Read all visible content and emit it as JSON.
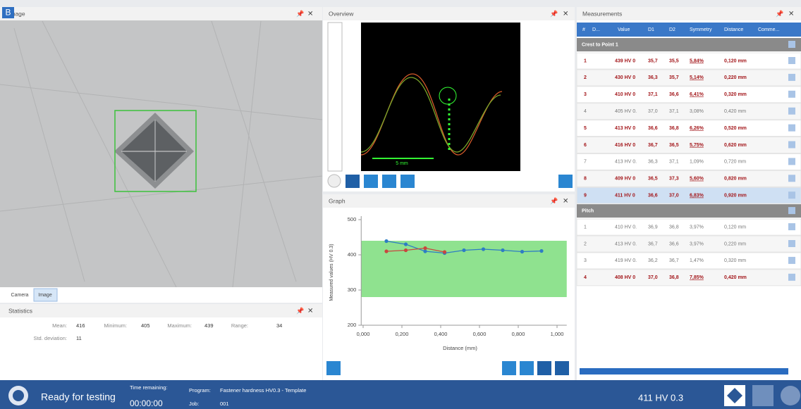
{
  "badge": "B",
  "image_panel": {
    "title": "Image",
    "tabs": [
      "Camera",
      "Image"
    ]
  },
  "statistics": {
    "title": "Statistics",
    "items": [
      {
        "label": "Mean:",
        "value": 416
      },
      {
        "label": "Minimum:",
        "value": 405
      },
      {
        "label": "Maximum:",
        "value": 439
      },
      {
        "label": "Range:",
        "value": 34
      },
      {
        "label": "Std. deviation:",
        "value": 11
      }
    ]
  },
  "overview": {
    "title": "Overview",
    "scale_label": "5 mm"
  },
  "graph_panel": {
    "title": "Graph"
  },
  "chart_data": {
    "type": "line",
    "xlabel": "Distance (mm)",
    "ylabel": "Measured values (HV 0.3)",
    "x": [
      0.12,
      0.22,
      0.32,
      0.42,
      0.52,
      0.62,
      0.72,
      0.82,
      0.92
    ],
    "series": [
      {
        "name": "Crest to Point 1",
        "color": "#2e7dc4",
        "values": [
          439,
          430,
          410,
          405,
          413,
          416,
          413,
          409,
          411
        ]
      },
      {
        "name": "Pitch",
        "color": "#c9473f",
        "values": [
          410,
          413,
          419,
          408,
          null,
          null,
          null,
          null,
          null
        ]
      }
    ],
    "band": [
      280,
      440
    ],
    "band_color": "#8fe28f",
    "xlim": [
      -0.01,
      1.05
    ],
    "ylim": [
      200,
      500
    ],
    "xticks": [
      {
        "value": 0,
        "label": "0,000"
      },
      {
        "value": 0.2,
        "label": "0,200"
      },
      {
        "value": 0.4,
        "label": "0,400"
      },
      {
        "value": 0.6,
        "label": "0,600"
      },
      {
        "value": 0.8,
        "label": "0,800"
      },
      {
        "value": 1,
        "label": "1,000"
      }
    ],
    "yticks": [
      200,
      300,
      400,
      500
    ]
  },
  "measurements": {
    "title": "Measurements",
    "columns": [
      "#",
      "D...",
      "Value",
      "D1",
      "D2",
      "Symmetry",
      "Distance",
      "Comme..."
    ],
    "groups": [
      {
        "name": "Crest to Point 1",
        "rows": [
          {
            "cells": [
              "1",
              "439 HV 0",
              "35,7",
              "35,5",
              "5,84%",
              "0,120 mm"
            ],
            "flagged": true
          },
          {
            "cells": [
              "2",
              "430 HV 0",
              "36,3",
              "35,7",
              "5,14%",
              "0,220 mm"
            ],
            "flagged": true
          },
          {
            "cells": [
              "3",
              "410 HV 0",
              "37,1",
              "36,6",
              "6,41%",
              "0,320 mm"
            ],
            "flagged": true
          },
          {
            "cells": [
              "4",
              "405 HV 0.",
              "37,0",
              "37,1",
              "3,08%",
              "0,420 mm"
            ],
            "flagged": false
          },
          {
            "cells": [
              "5",
              "413 HV 0",
              "36,6",
              "36,8",
              "6,26%",
              "0,520 mm"
            ],
            "flagged": true
          },
          {
            "cells": [
              "6",
              "416 HV 0",
              "36,7",
              "36,5",
              "5,75%",
              "0,620 mm"
            ],
            "flagged": true
          },
          {
            "cells": [
              "7",
              "413 HV 0.",
              "36,3",
              "37,1",
              "1,09%",
              "0,720 mm"
            ],
            "flagged": false
          },
          {
            "cells": [
              "8",
              "409 HV 0",
              "36,5",
              "37,3",
              "5,60%",
              "0,820 mm"
            ],
            "flagged": true
          },
          {
            "cells": [
              "9",
              "411 HV 0",
              "36,6",
              "37,0",
              "6,83%",
              "0,920 mm"
            ],
            "flagged": true,
            "selected": true
          }
        ]
      },
      {
        "name": "Pitch",
        "rows": [
          {
            "cells": [
              "1",
              "410 HV 0.",
              "36,9",
              "36,8",
              "3,97%",
              "0,120 mm"
            ],
            "flagged": false
          },
          {
            "cells": [
              "2",
              "413 HV 0.",
              "36,7",
              "36,6",
              "3,97%",
              "0,220 mm"
            ],
            "flagged": false
          },
          {
            "cells": [
              "3",
              "419 HV 0.",
              "36,2",
              "36,7",
              "1,47%",
              "0,320 mm"
            ],
            "flagged": false
          },
          {
            "cells": [
              "4",
              "408 HV 0",
              "37,0",
              "36,8",
              "7,85%",
              "0,420 mm"
            ],
            "flagged": true
          }
        ]
      }
    ]
  },
  "status": {
    "state": "Ready for testing",
    "time_label": "Time remaining:",
    "time": "00:00:00",
    "program_label": "Program:",
    "program": "Fastener hardness HV0.3 - Template",
    "job_label": "Job:",
    "job": "001",
    "result": "411 HV 0.3"
  }
}
